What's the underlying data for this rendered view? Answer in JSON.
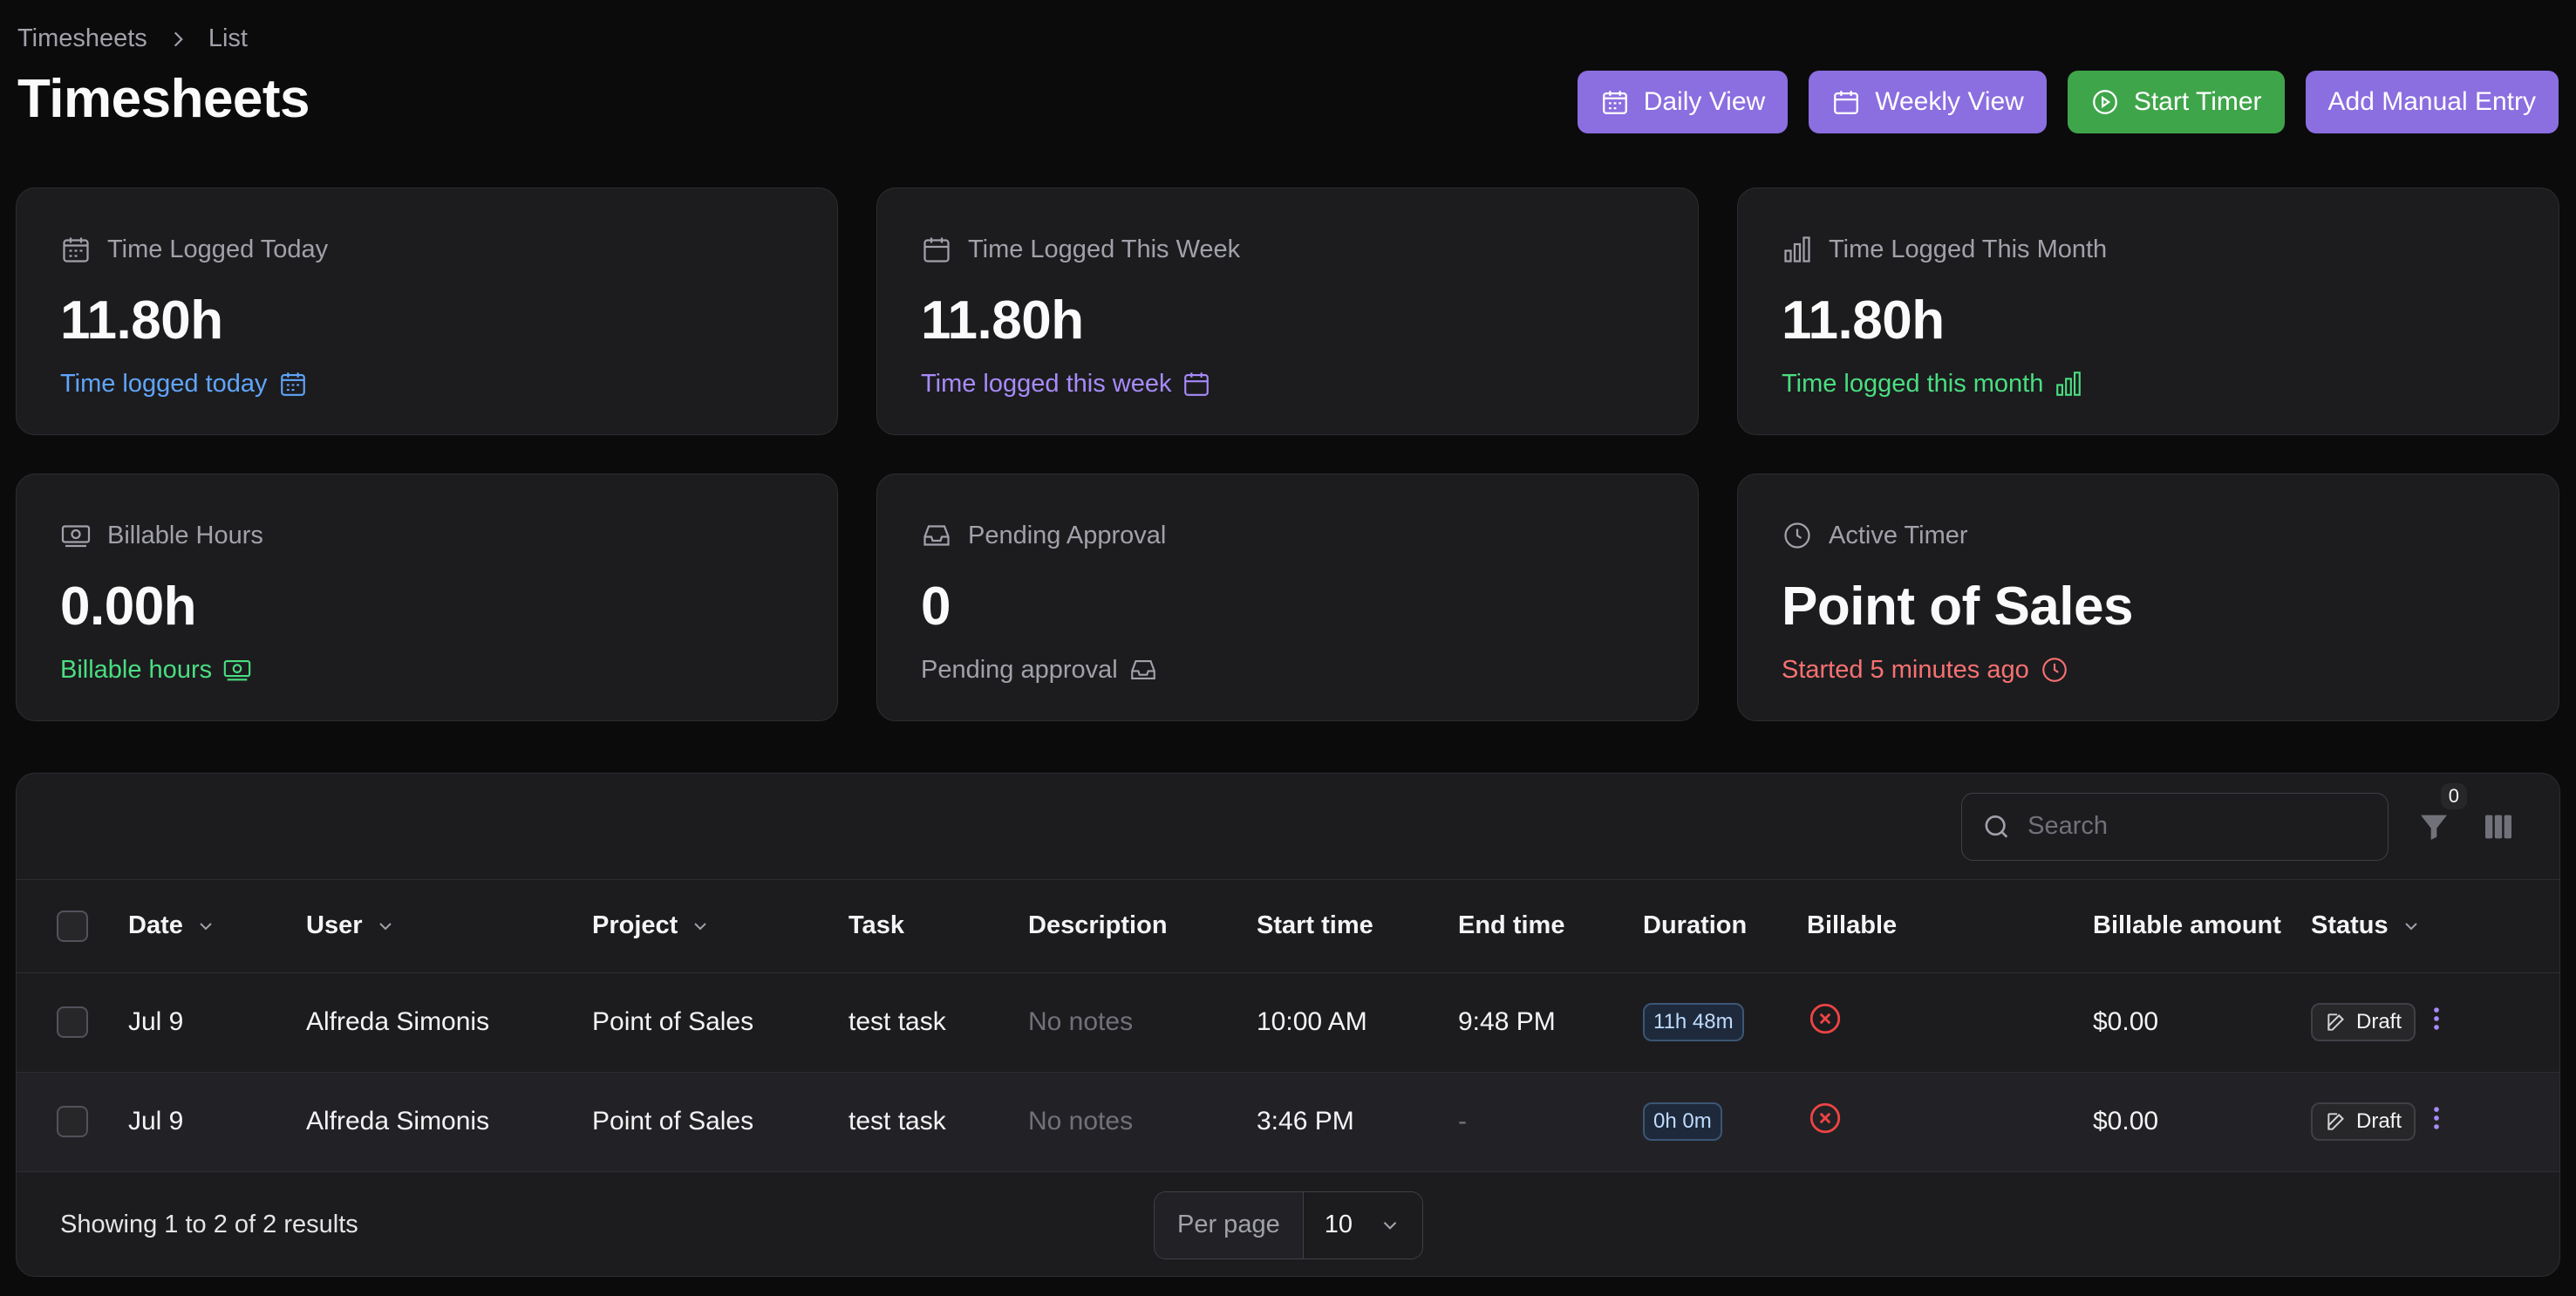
{
  "breadcrumb": {
    "items": [
      "Timesheets",
      "List"
    ]
  },
  "page": {
    "title": "Timesheets"
  },
  "actions": {
    "daily_view": "Daily View",
    "weekly_view": "Weekly View",
    "start_timer": "Start Timer",
    "add_manual_entry": "Add Manual Entry"
  },
  "stats": [
    {
      "label": "Time Logged Today",
      "value": "11.80h",
      "description": "Time logged today",
      "icon": "calendar-days-icon",
      "color": "#60a5fa"
    },
    {
      "label": "Time Logged This Week",
      "value": "11.80h",
      "description": "Time logged this week",
      "icon": "calendar-icon",
      "color": "#a78bfa"
    },
    {
      "label": "Time Logged This Month",
      "value": "11.80h",
      "description": "Time logged this month",
      "icon": "bar-chart-icon",
      "color": "#4ade80"
    },
    {
      "label": "Billable Hours",
      "value": "0.00h",
      "description": "Billable hours",
      "icon": "banknotes-icon",
      "color": "#4ade80"
    },
    {
      "label": "Pending Approval",
      "value": "0",
      "description": "Pending approval",
      "icon": "inbox-icon",
      "color": "#a1a1aa"
    },
    {
      "label": "Active Timer",
      "value": "Point of Sales",
      "description": "Started 5 minutes ago",
      "icon": "clock-icon",
      "color": "#f87171"
    }
  ],
  "table": {
    "search_placeholder": "Search",
    "filter_count": "0",
    "columns": [
      "Date",
      "User",
      "Project",
      "Task",
      "Description",
      "Start time",
      "End time",
      "Duration",
      "Billable",
      "Billable amount",
      "Status"
    ],
    "rows": [
      {
        "date": "Jul 9",
        "user": "Alfreda Simonis",
        "project": "Point of Sales",
        "task": "test task",
        "description": "No notes",
        "start": "10:00 AM",
        "end": "9:48 PM",
        "duration": "11h 48m",
        "billable": false,
        "amount": "$0.00",
        "status": "Draft"
      },
      {
        "date": "Jul 9",
        "user": "Alfreda Simonis",
        "project": "Point of Sales",
        "task": "test task",
        "description": "No notes",
        "start": "3:46 PM",
        "end": "-",
        "duration": "0h 0m",
        "billable": false,
        "amount": "$0.00",
        "status": "Draft"
      }
    ],
    "summary": "Showing 1 to 2 of 2 results",
    "per_page_label": "Per page",
    "per_page_value": "10"
  }
}
